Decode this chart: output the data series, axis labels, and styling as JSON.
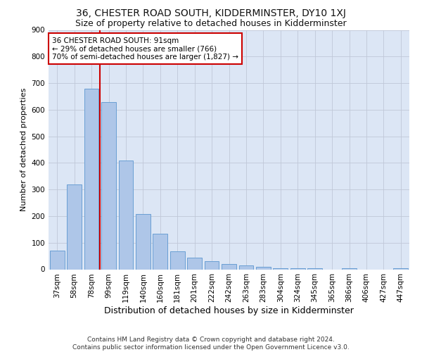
{
  "title": "36, CHESTER ROAD SOUTH, KIDDERMINSTER, DY10 1XJ",
  "subtitle": "Size of property relative to detached houses in Kidderminster",
  "xlabel": "Distribution of detached houses by size in Kidderminster",
  "ylabel": "Number of detached properties",
  "categories": [
    "37sqm",
    "58sqm",
    "78sqm",
    "99sqm",
    "119sqm",
    "140sqm",
    "160sqm",
    "181sqm",
    "201sqm",
    "222sqm",
    "242sqm",
    "263sqm",
    "283sqm",
    "304sqm",
    "324sqm",
    "345sqm",
    "365sqm",
    "386sqm",
    "406sqm",
    "427sqm",
    "447sqm"
  ],
  "values": [
    70,
    318,
    680,
    630,
    410,
    207,
    135,
    67,
    45,
    30,
    20,
    14,
    10,
    5,
    5,
    5,
    0,
    5,
    0,
    0,
    5
  ],
  "bar_color": "#aec6e8",
  "bar_edge_color": "#6a9fd4",
  "vline_color": "#cc0000",
  "vline_pos": 2.5,
  "annotation_text": "36 CHESTER ROAD SOUTH: 91sqm\n← 29% of detached houses are smaller (766)\n70% of semi-detached houses are larger (1,827) →",
  "annotation_box_color": "#ffffff",
  "annotation_box_edge": "#cc0000",
  "ylim": [
    0,
    900
  ],
  "yticks": [
    0,
    100,
    200,
    300,
    400,
    500,
    600,
    700,
    800,
    900
  ],
  "footnote": "Contains HM Land Registry data © Crown copyright and database right 2024.\nContains public sector information licensed under the Open Government Licence v3.0.",
  "bg_color": "#dce6f5",
  "fig_bg_color": "#ffffff",
  "grid_color": "#c0c8d8",
  "title_fontsize": 10,
  "subtitle_fontsize": 9,
  "xlabel_fontsize": 9,
  "ylabel_fontsize": 8,
  "tick_fontsize": 7.5,
  "annotation_fontsize": 7.5,
  "footnote_fontsize": 6.5
}
